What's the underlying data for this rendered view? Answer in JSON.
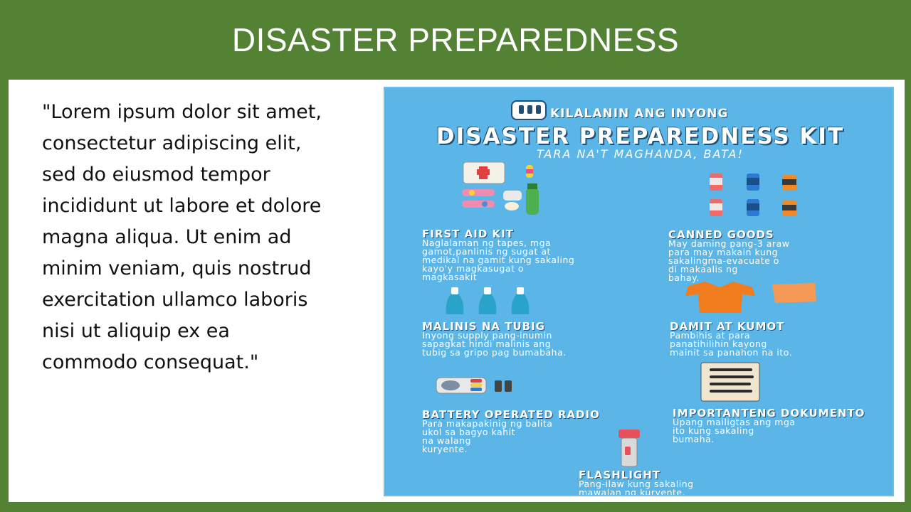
{
  "slide": {
    "title": "DISASTER PREPAREDNESS",
    "body_text": "\"Lorem ipsum dolor sit amet, consectetur adipiscing elit, sed do eiusmod tempor incididunt ut labore et dolore magna aliqua. Ut enim ad minim veniam, quis nostrud exercitation ullamco laboris nisi ut aliquip ex ea commodo consequat.\""
  },
  "poster": {
    "kicker": "KILALANIN ANG INYONG",
    "headline": "DISASTER PREPAREDNESS KIT",
    "subtitle": "TARA NA'T MAGHANDA, BATA!",
    "items": [
      {
        "title": "FIRST AID KIT",
        "desc": "Naglalaman ng tapes, mga\ngamot,panlinis ng sugat at\nmedikal na gamit kung sakaling\nkayo'y magkasugat o\nmagkasakit"
      },
      {
        "title": "CANNED GOODS",
        "desc": "May daming pang-3 araw\npara may makain kung\nsakalingma-evacuate o\ndi makaalis ng\nbahay."
      },
      {
        "title": "MALINIS NA TUBIG",
        "desc": "Inyong supply pang-inumin\nsapagkat hindi malinis ang\ntubig sa gripo pag bumabaha."
      },
      {
        "title": "DAMIT AT KUMOT",
        "desc": "Pambihis at para\npanatihilihin kayong\n mainit sa panahon na ito."
      },
      {
        "title": "BATTERY OPERATED RADIO",
        "desc": "Para makapakinig ng balita\nukol sa bagyo kahit\n na walang\nkuryente."
      },
      {
        "title": "IMPORTANTENG DOKUMENTO",
        "desc": "Upang mailigtas ang mga\nito kung sakaling\nbumaha."
      },
      {
        "title": "FLASHLIGHT",
        "desc": "Pang-ilaw kung sakaling\nmawalan ng kuryente."
      }
    ]
  }
}
